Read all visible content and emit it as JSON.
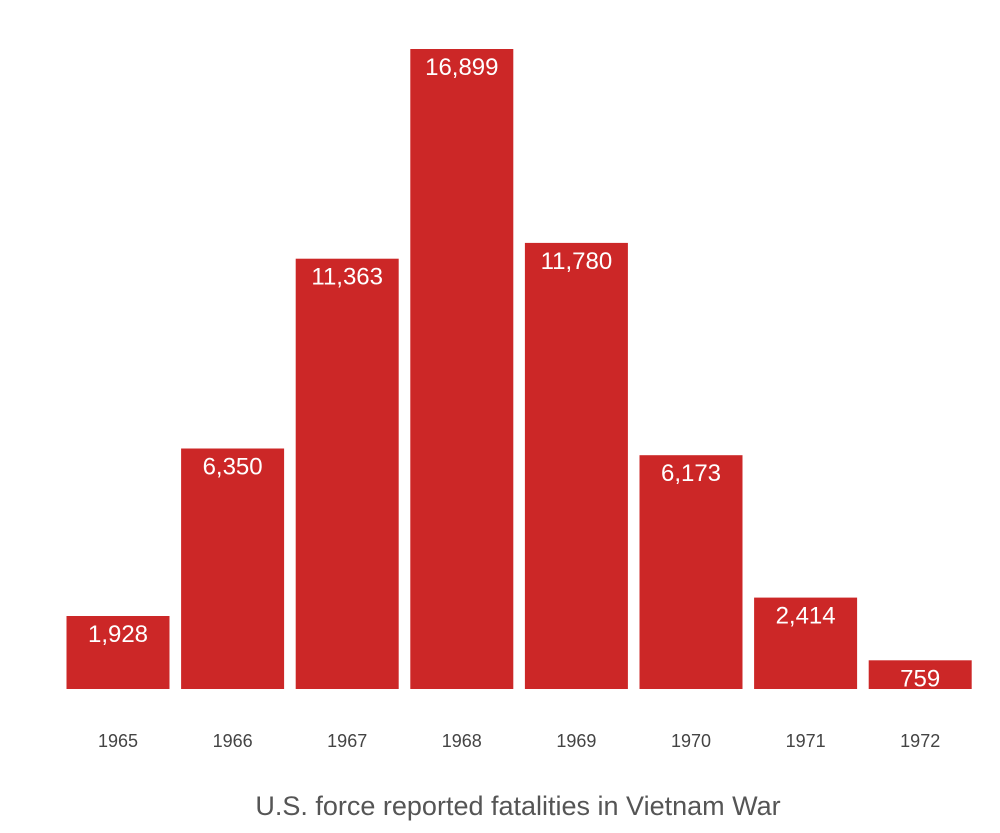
{
  "chart_data": {
    "type": "bar",
    "title": "U.S. force reported fatalities in Vietnam War",
    "xlabel": "",
    "ylabel": "",
    "categories": [
      "1965",
      "1966",
      "1967",
      "1968",
      "1969",
      "1970",
      "1971",
      "1972"
    ],
    "values": [
      1928,
      6350,
      11363,
      16899,
      11780,
      6173,
      2414,
      759
    ],
    "value_labels": [
      "1,928",
      "6,350",
      "11,363",
      "16,899",
      "11,780",
      "6,173",
      "2,414",
      "759"
    ],
    "ylim": [
      0,
      16899
    ],
    "grid": false,
    "legend": "none",
    "bar_color": "#cc2727"
  }
}
